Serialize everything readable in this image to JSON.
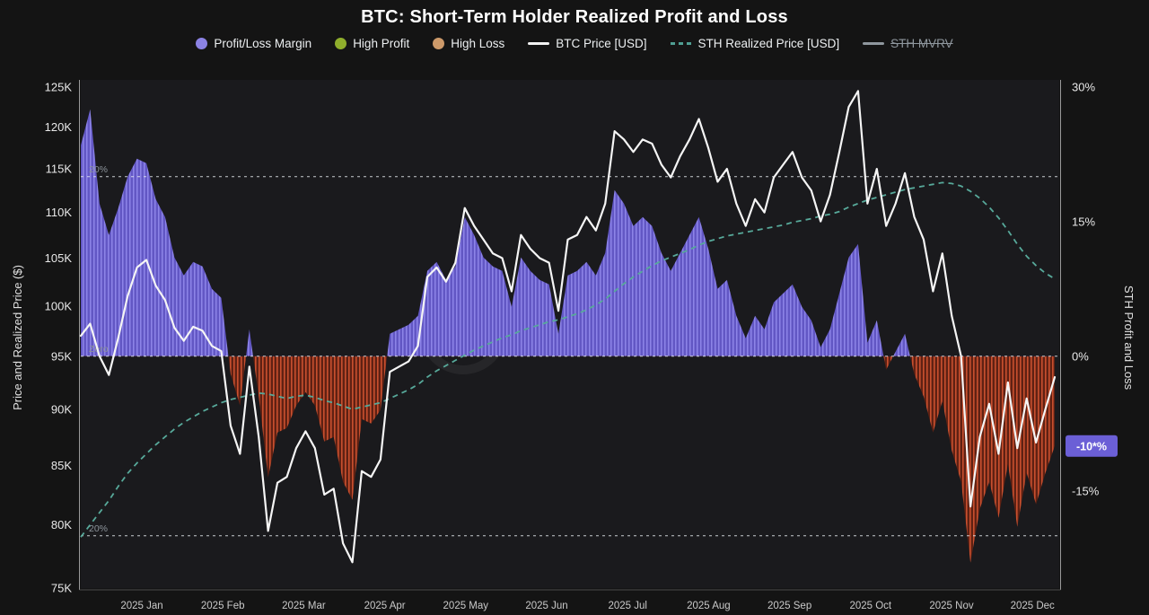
{
  "header": {
    "title": "BTC: Short-Term Holder Realized Profit and Loss",
    "legend": [
      {
        "label": "Profit/Loss Margin",
        "color": "#8b82e4",
        "type": "dot"
      },
      {
        "label": "High Profit",
        "color": "#8fae2c",
        "type": "dot"
      },
      {
        "label": "High Loss",
        "color": "#cd9a6a",
        "type": "dot"
      },
      {
        "label": "BTC Price [USD]",
        "color": "#f2f2f2",
        "type": "line"
      },
      {
        "label": "STH Realized Price [USD]",
        "color": "#4f9e92",
        "type": "dashed-line"
      },
      {
        "label": "STH MVRV",
        "color": "#8f979e",
        "type": "line",
        "disabled": true
      }
    ]
  },
  "chart_data": {
    "type": "area",
    "title": "BTC: Short-Term Holder Realized Profit and Loss",
    "ylabel_left": "Price and Realized Price ($)",
    "ylabel_right": "STH Profit and Loss",
    "y_left": {
      "scale": "log",
      "tick_labels": [
        "125K",
        "120K",
        "115K",
        "110K",
        "105K",
        "100K",
        "95K",
        "90K",
        "85K",
        "80K",
        "75K"
      ],
      "tick_values": [
        125,
        120,
        115,
        110,
        105,
        100,
        95,
        90,
        85,
        80,
        75
      ],
      "unit": "K USD"
    },
    "y_right": {
      "scale": "linear",
      "tick_labels": [
        "30%",
        "15%",
        "0%",
        "-15%"
      ],
      "tick_values": [
        30,
        15,
        0,
        -15
      ],
      "unit": "%"
    },
    "thresholds": [
      {
        "label": "20%",
        "pct": 20
      },
      {
        "label": "Zero",
        "pct": 0
      },
      {
        "label": "20%",
        "pct": -20
      }
    ],
    "current_badge": {
      "label": "-10*%",
      "pct": -10,
      "color": "#6b5fd6"
    },
    "x_categories": [
      "2025 Jan",
      "2025 Feb",
      "2025 Mar",
      "2025 Apr",
      "2025 May",
      "2025 Jun",
      "2025 Jul",
      "2025 Aug",
      "2025 Sep",
      "2025 Oct",
      "2025 Nov",
      "2025 Dec"
    ],
    "points_per_month": 9,
    "series": [
      {
        "name": "Profit/Loss Margin",
        "axis": "right",
        "unit": "%",
        "style": "area",
        "color_positive": "#6257c4",
        "stripe_positive": "#8d84e8",
        "color_negative": "#5f2113",
        "stripe_negative": "#c84f2e",
        "values": [
          23.5,
          27.5,
          17.0,
          13.5,
          16.5,
          20.0,
          22.0,
          21.5,
          17.5,
          15.5,
          11.0,
          9.0,
          10.5,
          10.0,
          7.5,
          6.5,
          -2.0,
          -5.5,
          3.0,
          -4.5,
          -13.5,
          -8.5,
          -8.0,
          -5.5,
          -4.0,
          -5.5,
          -9.5,
          -9.0,
          -14.0,
          -16.0,
          -7.0,
          -7.5,
          -6.0,
          2.5,
          3.0,
          3.5,
          4.5,
          9.5,
          10.5,
          8.5,
          10.0,
          15.5,
          13.5,
          11.0,
          10.0,
          9.5,
          5.5,
          11.0,
          9.5,
          8.5,
          8.0,
          2.5,
          9.0,
          9.5,
          10.5,
          9.0,
          11.5,
          18.5,
          17.0,
          14.5,
          15.5,
          14.5,
          11.5,
          9.5,
          11.5,
          13.5,
          15.5,
          12.0,
          7.5,
          8.5,
          4.5,
          2.0,
          4.5,
          3.0,
          6.0,
          7.0,
          8.0,
          5.5,
          4.0,
          1.0,
          3.0,
          7.0,
          11.0,
          12.5,
          1.5,
          4.0,
          -1.5,
          0.5,
          2.5,
          -2.0,
          -4.5,
          -8.5,
          -5.0,
          -10.5,
          -14.0,
          -23.0,
          -17.0,
          -14.0,
          -18.0,
          -12.0,
          -19.0,
          -13.0,
          -16.5,
          -13.0,
          -10.0
        ]
      },
      {
        "name": "BTC Price [USD]",
        "axis": "left",
        "unit": "K USD",
        "style": "line",
        "color": "#f5f5f5",
        "values": [
          97.0,
          98.2,
          95.0,
          93.2,
          96.8,
          101.0,
          104.0,
          104.8,
          102.1,
          100.6,
          97.8,
          96.5,
          97.9,
          97.5,
          96.0,
          95.5,
          88.5,
          86.0,
          94.0,
          87.5,
          79.5,
          83.5,
          84.0,
          86.5,
          88.0,
          86.5,
          82.5,
          83.0,
          78.5,
          77.0,
          84.5,
          84.0,
          85.5,
          93.5,
          94.0,
          94.5,
          96.0,
          103.0,
          104.0,
          102.5,
          104.5,
          110.5,
          108.5,
          107.0,
          105.5,
          105.0,
          101.5,
          107.5,
          106.0,
          105.0,
          104.5,
          99.5,
          107.0,
          107.5,
          109.5,
          108.0,
          111.0,
          119.5,
          118.5,
          117.0,
          118.5,
          118.0,
          115.5,
          114.0,
          116.5,
          118.5,
          121.0,
          117.5,
          113.5,
          115.0,
          111.0,
          108.5,
          111.5,
          110.0,
          114.0,
          115.5,
          117.0,
          114.0,
          112.5,
          109.0,
          112.0,
          117.0,
          122.5,
          124.5,
          111.0,
          115.0,
          108.5,
          111.0,
          114.5,
          109.5,
          107.0,
          101.5,
          105.5,
          99.0,
          95.0,
          81.5,
          87.5,
          90.5,
          86.0,
          92.5,
          86.5,
          91.0,
          87.0,
          90.0,
          93.0
        ]
      },
      {
        "name": "STH Realized Price [USD]",
        "axis": "left",
        "unit": "K USD",
        "style": "dashed",
        "color": "#57a99a",
        "values": [
          79.0,
          80.0,
          81.0,
          82.0,
          83.2,
          84.3,
          85.2,
          86.0,
          86.8,
          87.5,
          88.2,
          88.8,
          89.3,
          89.8,
          90.2,
          90.6,
          90.9,
          91.1,
          91.3,
          91.5,
          91.4,
          91.2,
          91.0,
          91.2,
          91.3,
          91.1,
          90.8,
          90.6,
          90.3,
          90.0,
          90.2,
          90.4,
          90.6,
          91.0,
          91.4,
          91.8,
          92.3,
          93.0,
          93.6,
          94.1,
          94.6,
          95.1,
          95.6,
          96.0,
          96.4,
          96.8,
          97.1,
          97.5,
          97.8,
          98.1,
          98.4,
          98.6,
          98.9,
          99.2,
          99.6,
          100.1,
          100.7,
          101.5,
          102.3,
          103.0,
          103.6,
          104.2,
          104.7,
          105.1,
          105.5,
          105.9,
          106.4,
          106.8,
          107.1,
          107.4,
          107.6,
          107.8,
          108.0,
          108.2,
          108.4,
          108.6,
          108.9,
          109.1,
          109.3,
          109.6,
          109.8,
          110.1,
          110.6,
          111.0,
          111.4,
          111.7,
          112.0,
          112.3,
          112.6,
          112.8,
          113.0,
          113.2,
          113.4,
          113.3,
          113.0,
          112.4,
          111.6,
          110.6,
          109.4,
          108.0,
          106.5,
          105.2,
          104.2,
          103.4,
          102.8
        ]
      }
    ]
  }
}
